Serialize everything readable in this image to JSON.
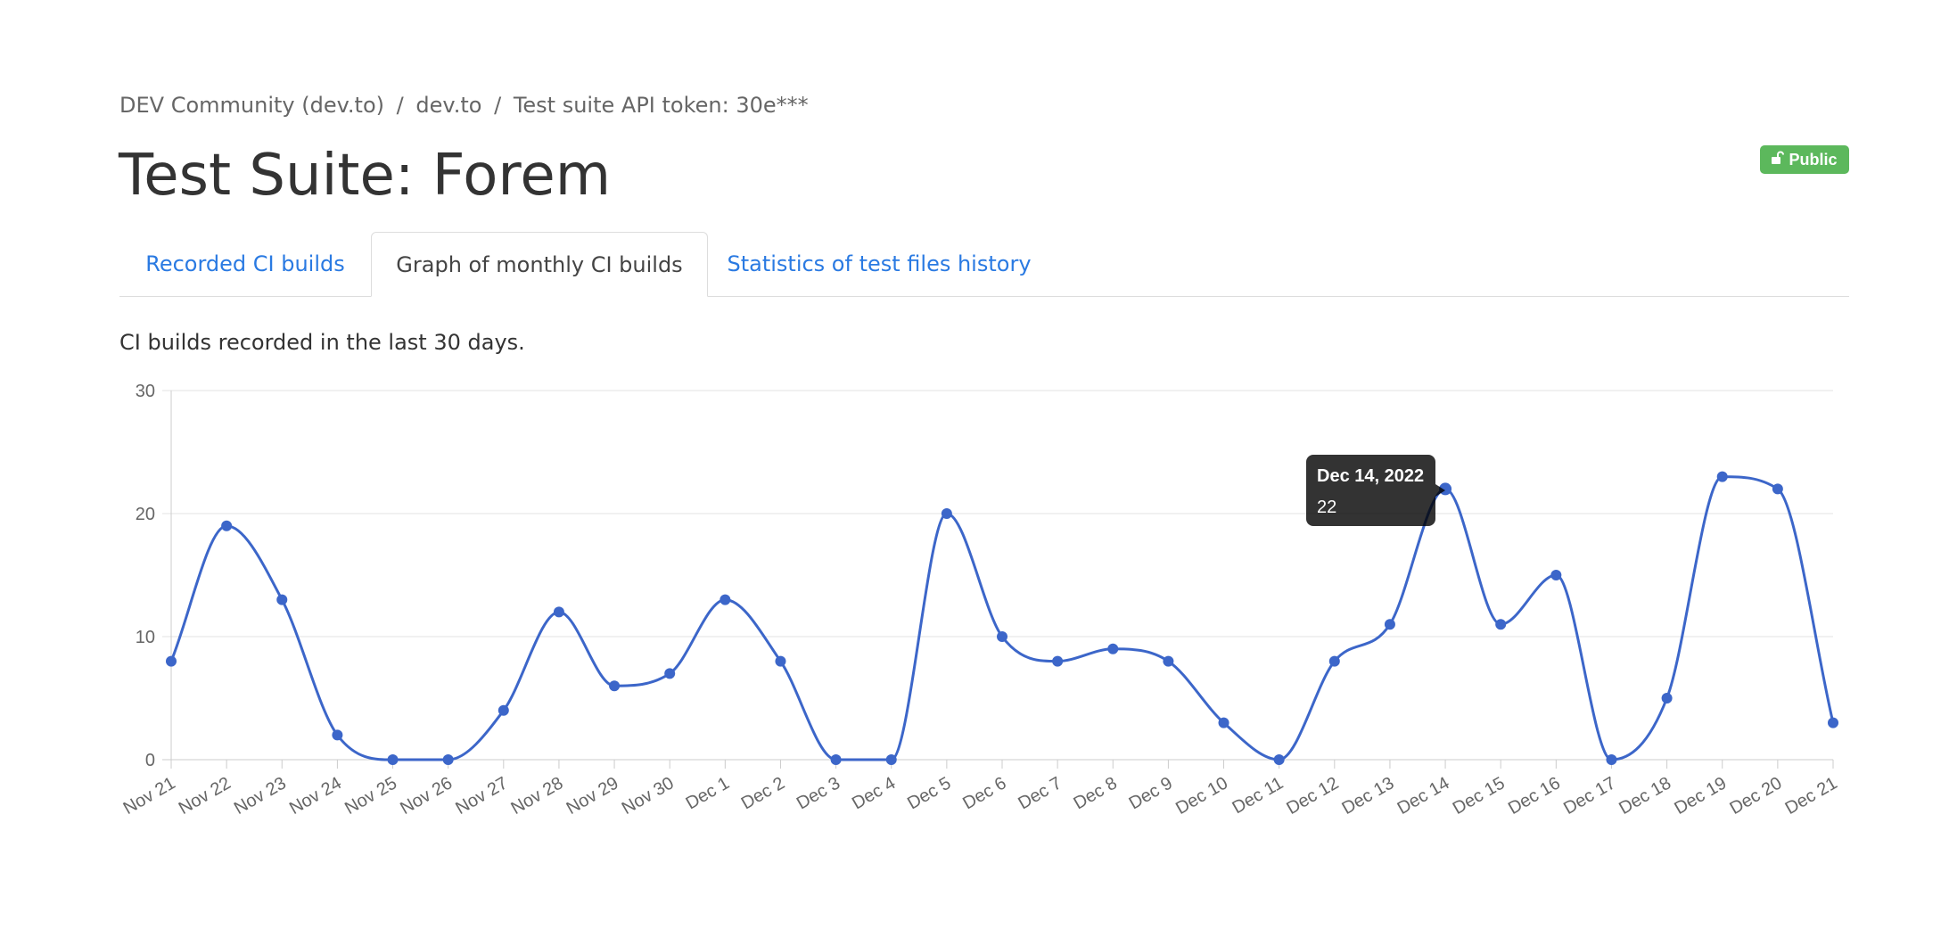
{
  "breadcrumb": {
    "organization": "DEV Community (dev.to)",
    "project": "dev.to",
    "test_suite": "Test suite API token: 30e***",
    "separator": "/"
  },
  "page_title": "Test Suite: Forem",
  "badge": {
    "label": "Public",
    "icon": "unlock-icon",
    "color": "#5cb85c"
  },
  "tabs": [
    {
      "label": "Recorded CI builds",
      "active": false
    },
    {
      "label": "Graph of monthly CI builds",
      "active": true
    },
    {
      "label": "Statistics of test files history",
      "active": false
    }
  ],
  "description": "CI builds recorded in the last 30 days.",
  "colors": {
    "line": "#3c66c9",
    "link": "#2a7ae2"
  },
  "chart_data": {
    "type": "line",
    "categories": [
      "Nov 21",
      "Nov 22",
      "Nov 23",
      "Nov 24",
      "Nov 25",
      "Nov 26",
      "Nov 27",
      "Nov 28",
      "Nov 29",
      "Nov 30",
      "Dec 1",
      "Dec 2",
      "Dec 3",
      "Dec 4",
      "Dec 5",
      "Dec 6",
      "Dec 7",
      "Dec 8",
      "Dec 9",
      "Dec 10",
      "Dec 11",
      "Dec 12",
      "Dec 13",
      "Dec 14",
      "Dec 15",
      "Dec 16",
      "Dec 17",
      "Dec 18",
      "Dec 19",
      "Dec 20",
      "Dec 21"
    ],
    "values": [
      8,
      19,
      13,
      2,
      0,
      0,
      4,
      12,
      6,
      7,
      13,
      8,
      0,
      0,
      20,
      10,
      8,
      9,
      8,
      3,
      0,
      8,
      11,
      22,
      11,
      15,
      0,
      5,
      23,
      22,
      3
    ],
    "ylim": [
      0,
      30
    ],
    "yticks": [
      0,
      10,
      20,
      30
    ],
    "grid": true,
    "legend": "none",
    "tooltip": {
      "index": 23,
      "title": "Dec 14, 2022",
      "value": "22"
    }
  }
}
